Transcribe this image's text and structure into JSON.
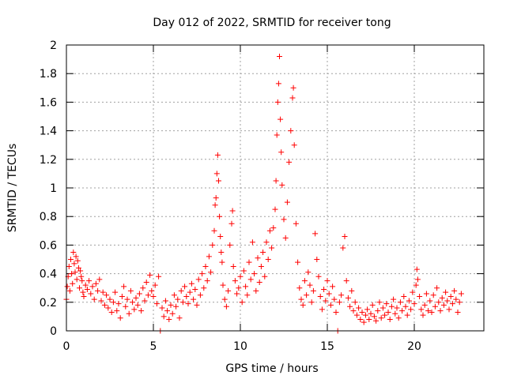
{
  "chart_data": {
    "type": "scatter",
    "title": "Day 012 of 2022, SRMTID for receiver tong",
    "xlabel": "GPS time / hours",
    "ylabel": "SRMTID / TECUs",
    "xlim": [
      0,
      24
    ],
    "ylim": [
      0,
      2
    ],
    "xticks": [
      0,
      5,
      10,
      15,
      20
    ],
    "xtick_labels": [
      "0",
      "5",
      "10",
      "15",
      "20"
    ],
    "yticks": [
      0,
      0.2,
      0.4,
      0.6,
      0.8,
      1,
      1.2,
      1.4,
      1.6,
      1.8,
      2
    ],
    "ytick_labels": [
      "0",
      "0.2",
      "0.4",
      "0.6",
      "0.8",
      "1",
      "1.2",
      "1.4",
      "1.6",
      "1.8",
      "2"
    ],
    "grid": true,
    "marker": "+",
    "series": [
      {
        "name": "SRMTID",
        "color": "#ff0000",
        "points": [
          [
            0.0,
            0.22
          ],
          [
            0.05,
            0.31
          ],
          [
            0.1,
            0.38
          ],
          [
            0.15,
            0.45
          ],
          [
            0.2,
            0.28
          ],
          [
            0.25,
            0.5
          ],
          [
            0.3,
            0.4
          ],
          [
            0.35,
            0.33
          ],
          [
            0.4,
            0.55
          ],
          [
            0.45,
            0.47
          ],
          [
            0.5,
            0.41
          ],
          [
            0.55,
            0.52
          ],
          [
            0.6,
            0.36
          ],
          [
            0.65,
            0.49
          ],
          [
            0.7,
            0.44
          ],
          [
            0.75,
            0.3
          ],
          [
            0.8,
            0.42
          ],
          [
            0.85,
            0.38
          ],
          [
            0.9,
            0.35
          ],
          [
            0.95,
            0.27
          ],
          [
            1.0,
            0.24
          ],
          [
            1.1,
            0.32
          ],
          [
            1.2,
            0.29
          ],
          [
            1.3,
            0.35
          ],
          [
            1.4,
            0.26
          ],
          [
            1.5,
            0.31
          ],
          [
            1.6,
            0.22
          ],
          [
            1.7,
            0.33
          ],
          [
            1.8,
            0.28
          ],
          [
            1.9,
            0.36
          ],
          [
            2.0,
            0.21
          ],
          [
            2.1,
            0.27
          ],
          [
            2.2,
            0.18
          ],
          [
            2.3,
            0.25
          ],
          [
            2.4,
            0.16
          ],
          [
            2.5,
            0.22
          ],
          [
            2.6,
            0.13
          ],
          [
            2.7,
            0.2
          ],
          [
            2.8,
            0.27
          ],
          [
            2.9,
            0.14
          ],
          [
            3.0,
            0.19
          ],
          [
            3.1,
            0.09
          ],
          [
            3.2,
            0.24
          ],
          [
            3.3,
            0.31
          ],
          [
            3.4,
            0.17
          ],
          [
            3.5,
            0.22
          ],
          [
            3.6,
            0.12
          ],
          [
            3.7,
            0.28
          ],
          [
            3.8,
            0.2
          ],
          [
            3.9,
            0.15
          ],
          [
            4.0,
            0.23
          ],
          [
            4.1,
            0.18
          ],
          [
            4.2,
            0.26
          ],
          [
            4.3,
            0.14
          ],
          [
            4.4,
            0.3
          ],
          [
            4.5,
            0.21
          ],
          [
            4.6,
            0.34
          ],
          [
            4.7,
            0.25
          ],
          [
            4.8,
            0.39
          ],
          [
            4.9,
            0.28
          ],
          [
            5.0,
            0.24
          ],
          [
            5.1,
            0.32
          ],
          [
            5.2,
            0.19
          ],
          [
            5.3,
            0.38
          ],
          [
            5.4,
            0.0
          ],
          [
            5.5,
            0.16
          ],
          [
            5.6,
            0.1
          ],
          [
            5.7,
            0.21
          ],
          [
            5.8,
            0.14
          ],
          [
            5.9,
            0.08
          ],
          [
            6.0,
            0.18
          ],
          [
            6.1,
            0.12
          ],
          [
            6.2,
            0.25
          ],
          [
            6.3,
            0.17
          ],
          [
            6.4,
            0.22
          ],
          [
            6.5,
            0.09
          ],
          [
            6.6,
            0.28
          ],
          [
            6.7,
            0.2
          ],
          [
            6.8,
            0.31
          ],
          [
            6.9,
            0.24
          ],
          [
            7.0,
            0.19
          ],
          [
            7.1,
            0.27
          ],
          [
            7.2,
            0.33
          ],
          [
            7.3,
            0.22
          ],
          [
            7.4,
            0.29
          ],
          [
            7.5,
            0.18
          ],
          [
            7.6,
            0.36
          ],
          [
            7.7,
            0.25
          ],
          [
            7.8,
            0.4
          ],
          [
            7.9,
            0.3
          ],
          [
            8.0,
            0.45
          ],
          [
            8.1,
            0.35
          ],
          [
            8.2,
            0.52
          ],
          [
            8.3,
            0.41
          ],
          [
            8.4,
            0.6
          ],
          [
            8.5,
            0.7
          ],
          [
            8.55,
            0.88
          ],
          [
            8.6,
            0.93
          ],
          [
            8.65,
            1.1
          ],
          [
            8.7,
            1.23
          ],
          [
            8.75,
            1.05
          ],
          [
            8.8,
            0.8
          ],
          [
            8.85,
            0.66
          ],
          [
            8.9,
            0.55
          ],
          [
            8.95,
            0.48
          ],
          [
            9.0,
            0.32
          ],
          [
            9.1,
            0.22
          ],
          [
            9.2,
            0.17
          ],
          [
            9.3,
            0.28
          ],
          [
            9.4,
            0.6
          ],
          [
            9.5,
            0.75
          ],
          [
            9.55,
            0.84
          ],
          [
            9.6,
            0.45
          ],
          [
            9.7,
            0.35
          ],
          [
            9.8,
            0.26
          ],
          [
            9.9,
            0.3
          ],
          [
            10.0,
            0.38
          ],
          [
            10.1,
            0.2
          ],
          [
            10.2,
            0.42
          ],
          [
            10.3,
            0.31
          ],
          [
            10.4,
            0.25
          ],
          [
            10.5,
            0.48
          ],
          [
            10.6,
            0.36
          ],
          [
            10.7,
            0.62
          ],
          [
            10.8,
            0.4
          ],
          [
            10.9,
            0.28
          ],
          [
            11.0,
            0.51
          ],
          [
            11.1,
            0.34
          ],
          [
            11.2,
            0.45
          ],
          [
            11.3,
            0.55
          ],
          [
            11.4,
            0.38
          ],
          [
            11.5,
            0.62
          ],
          [
            11.6,
            0.5
          ],
          [
            11.7,
            0.7
          ],
          [
            11.8,
            0.58
          ],
          [
            11.9,
            0.72
          ],
          [
            12.0,
            0.85
          ],
          [
            12.05,
            1.05
          ],
          [
            12.1,
            1.37
          ],
          [
            12.15,
            1.6
          ],
          [
            12.2,
            1.73
          ],
          [
            12.25,
            1.92
          ],
          [
            12.3,
            1.48
          ],
          [
            12.35,
            1.25
          ],
          [
            12.4,
            1.02
          ],
          [
            12.5,
            0.78
          ],
          [
            12.6,
            0.65
          ],
          [
            12.7,
            0.9
          ],
          [
            12.8,
            1.18
          ],
          [
            12.9,
            1.4
          ],
          [
            13.0,
            1.63
          ],
          [
            13.05,
            1.7
          ],
          [
            13.1,
            1.3
          ],
          [
            13.2,
            0.75
          ],
          [
            13.3,
            0.48
          ],
          [
            13.4,
            0.3
          ],
          [
            13.5,
            0.22
          ],
          [
            13.6,
            0.18
          ],
          [
            13.7,
            0.35
          ],
          [
            13.8,
            0.25
          ],
          [
            13.9,
            0.41
          ],
          [
            14.0,
            0.32
          ],
          [
            14.1,
            0.2
          ],
          [
            14.2,
            0.28
          ],
          [
            14.3,
            0.68
          ],
          [
            14.4,
            0.5
          ],
          [
            14.5,
            0.38
          ],
          [
            14.6,
            0.24
          ],
          [
            14.7,
            0.15
          ],
          [
            14.8,
            0.29
          ],
          [
            14.9,
            0.21
          ],
          [
            15.0,
            0.35
          ],
          [
            15.1,
            0.26
          ],
          [
            15.2,
            0.18
          ],
          [
            15.3,
            0.31
          ],
          [
            15.4,
            0.22
          ],
          [
            15.5,
            0.13
          ],
          [
            15.6,
            0.0
          ],
          [
            15.7,
            0.2
          ],
          [
            15.8,
            0.25
          ],
          [
            15.9,
            0.58
          ],
          [
            16.0,
            0.66
          ],
          [
            16.1,
            0.35
          ],
          [
            16.2,
            0.23
          ],
          [
            16.3,
            0.17
          ],
          [
            16.4,
            0.28
          ],
          [
            16.5,
            0.14
          ],
          [
            16.6,
            0.2
          ],
          [
            16.7,
            0.11
          ],
          [
            16.8,
            0.16
          ],
          [
            16.9,
            0.08
          ],
          [
            17.0,
            0.13
          ],
          [
            17.1,
            0.06
          ],
          [
            17.2,
            0.11
          ],
          [
            17.3,
            0.15
          ],
          [
            17.4,
            0.08
          ],
          [
            17.5,
            0.12
          ],
          [
            17.6,
            0.18
          ],
          [
            17.7,
            0.1
          ],
          [
            17.8,
            0.07
          ],
          [
            17.9,
            0.14
          ],
          [
            18.0,
            0.2
          ],
          [
            18.1,
            0.09
          ],
          [
            18.2,
            0.16
          ],
          [
            18.3,
            0.11
          ],
          [
            18.4,
            0.19
          ],
          [
            18.5,
            0.13
          ],
          [
            18.6,
            0.08
          ],
          [
            18.7,
            0.17
          ],
          [
            18.8,
            0.22
          ],
          [
            18.9,
            0.12
          ],
          [
            19.0,
            0.16
          ],
          [
            19.1,
            0.09
          ],
          [
            19.2,
            0.2
          ],
          [
            19.3,
            0.14
          ],
          [
            19.4,
            0.24
          ],
          [
            19.5,
            0.17
          ],
          [
            19.6,
            0.11
          ],
          [
            19.7,
            0.21
          ],
          [
            19.8,
            0.15
          ],
          [
            19.9,
            0.27
          ],
          [
            20.0,
            0.19
          ],
          [
            20.1,
            0.32
          ],
          [
            20.15,
            0.43
          ],
          [
            20.2,
            0.36
          ],
          [
            20.3,
            0.24
          ],
          [
            20.4,
            0.15
          ],
          [
            20.5,
            0.11
          ],
          [
            20.6,
            0.18
          ],
          [
            20.7,
            0.26
          ],
          [
            20.8,
            0.14
          ],
          [
            20.9,
            0.21
          ],
          [
            21.0,
            0.13
          ],
          [
            21.1,
            0.25
          ],
          [
            21.2,
            0.17
          ],
          [
            21.3,
            0.3
          ],
          [
            21.4,
            0.2
          ],
          [
            21.5,
            0.14
          ],
          [
            21.6,
            0.23
          ],
          [
            21.7,
            0.18
          ],
          [
            21.8,
            0.27
          ],
          [
            21.9,
            0.21
          ],
          [
            22.0,
            0.15
          ],
          [
            22.1,
            0.24
          ],
          [
            22.2,
            0.19
          ],
          [
            22.3,
            0.28
          ],
          [
            22.4,
            0.22
          ],
          [
            22.5,
            0.13
          ],
          [
            22.6,
            0.2
          ],
          [
            22.7,
            0.26
          ]
        ]
      }
    ]
  }
}
